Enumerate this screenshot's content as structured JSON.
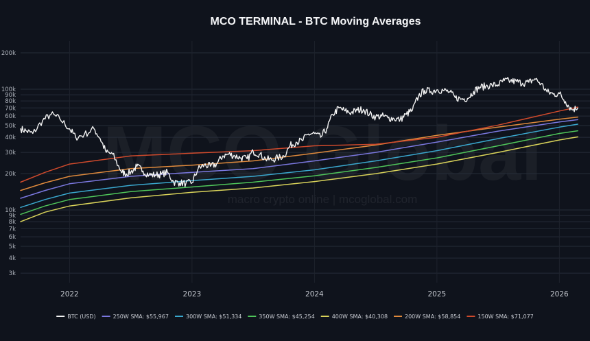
{
  "chart_data": {
    "type": "line",
    "title": "MCO TERMINAL - BTC Moving Averages",
    "xlabel": "",
    "ylabel": "",
    "yscale": "log",
    "ylim": [
      2500,
      250000
    ],
    "xlim": [
      2021.6,
      2026.25
    ],
    "grid": true,
    "legend_position": "bottom",
    "watermark": {
      "main": "MCO Global",
      "sub": "macro crypto online  |  mcoglobal.com"
    },
    "x_ticks": [
      {
        "label": "2022",
        "value": 2022
      },
      {
        "label": "2023",
        "value": 2023
      },
      {
        "label": "2024",
        "value": 2024
      },
      {
        "label": "2025",
        "value": 2025
      },
      {
        "label": "2026",
        "value": 2026
      }
    ],
    "y_ticks": [
      {
        "label": "3k",
        "value": 3000
      },
      {
        "label": "4k",
        "value": 4000
      },
      {
        "label": "5k",
        "value": 5000
      },
      {
        "label": "6k",
        "value": 6000
      },
      {
        "label": "7k",
        "value": 7000
      },
      {
        "label": "8k",
        "value": 8000
      },
      {
        "label": "9k",
        "value": 9000
      },
      {
        "label": "10k",
        "value": 10000
      },
      {
        "label": "20k",
        "value": 20000
      },
      {
        "label": "30k",
        "value": 30000
      },
      {
        "label": "40k",
        "value": 40000
      },
      {
        "label": "50k",
        "value": 50000
      },
      {
        "label": "60k",
        "value": 60000
      },
      {
        "label": "70k",
        "value": 70000
      },
      {
        "label": "80k",
        "value": 80000
      },
      {
        "label": "90k",
        "value": 90000
      },
      {
        "label": "100k",
        "value": 100000
      },
      {
        "label": "200k",
        "value": 200000
      }
    ],
    "series": [
      {
        "name": "BTC (USD)",
        "legend": "BTC (USD)",
        "color": "#f2f2f2",
        "width": 1.4,
        "jitter": 0.06,
        "x": [
          2021.6,
          2021.65,
          2021.7,
          2021.78,
          2021.85,
          2021.92,
          2022.0,
          2022.05,
          2022.12,
          2022.2,
          2022.25,
          2022.3,
          2022.35,
          2022.42,
          2022.45,
          2022.5,
          2022.55,
          2022.6,
          2022.65,
          2022.7,
          2022.75,
          2022.8,
          2022.85,
          2022.9,
          2022.95,
          2023.0,
          2023.05,
          2023.1,
          2023.15,
          2023.2,
          2023.25,
          2023.3,
          2023.35,
          2023.4,
          2023.45,
          2023.5,
          2023.55,
          2023.6,
          2023.65,
          2023.7,
          2023.75,
          2023.8,
          2023.85,
          2023.9,
          2023.95,
          2024.0,
          2024.05,
          2024.1,
          2024.15,
          2024.2,
          2024.25,
          2024.3,
          2024.35,
          2024.4,
          2024.45,
          2024.5,
          2024.55,
          2024.6,
          2024.65,
          2024.7,
          2024.75,
          2024.8,
          2024.85,
          2024.9,
          2024.95,
          2025.0,
          2025.05,
          2025.1,
          2025.15,
          2025.2,
          2025.25,
          2025.3,
          2025.35,
          2025.4,
          2025.45,
          2025.5,
          2025.55,
          2025.6,
          2025.65,
          2025.7,
          2025.75,
          2025.8,
          2025.85,
          2025.9,
          2025.95,
          2026.0,
          2026.05,
          2026.1,
          2026.15
        ],
        "values": [
          47000,
          45000,
          43000,
          55000,
          62000,
          57000,
          47000,
          40000,
          42000,
          47000,
          39000,
          30000,
          29000,
          21000,
          20000,
          20500,
          23000,
          21000,
          19500,
          19500,
          19800,
          20500,
          17000,
          16800,
          16600,
          16800,
          22000,
          23500,
          23000,
          24000,
          28000,
          29000,
          28000,
          27000,
          26500,
          30500,
          29000,
          26500,
          26000,
          27000,
          28000,
          34000,
          36500,
          37500,
          42500,
          43000,
          40000,
          47000,
          62000,
          70000,
          66000,
          64000,
          67000,
          68000,
          62000,
          59000,
          60000,
          58000,
          57000,
          56000,
          62000,
          67000,
          88000,
          98000,
          96000,
          99000,
          98000,
          95000,
          85000,
          83000,
          84000,
          96000,
          104000,
          106000,
          108000,
          109000,
          118000,
          117000,
          116000,
          112000,
          114000,
          122000,
          111000,
          95000,
          91000,
          92000,
          79000,
          68000,
          70000
        ]
      },
      {
        "name": "250W SMA",
        "legend": "250W SMA: $55,967",
        "color": "#7b78e0",
        "width": 1.5,
        "x": [
          2021.6,
          2021.8,
          2022.0,
          2022.5,
          2023.0,
          2023.5,
          2024.0,
          2024.5,
          2025.0,
          2025.5,
          2026.0,
          2026.15
        ],
        "values": [
          12500,
          14500,
          16500,
          19000,
          20500,
          22000,
          25500,
          30000,
          36500,
          45000,
          53500,
          55967
        ]
      },
      {
        "name": "300W SMA",
        "legend": "300W SMA: $51,334",
        "color": "#3aa8cf",
        "width": 1.5,
        "x": [
          2021.6,
          2021.8,
          2022.0,
          2022.5,
          2023.0,
          2023.5,
          2024.0,
          2024.5,
          2025.0,
          2025.5,
          2026.0,
          2026.15
        ],
        "values": [
          10500,
          12200,
          13800,
          16000,
          17500,
          19000,
          21500,
          25500,
          31000,
          39000,
          48500,
          51334
        ]
      },
      {
        "name": "350W SMA",
        "legend": "350W SMA: $45,254",
        "color": "#4fc65a",
        "width": 1.5,
        "x": [
          2021.6,
          2021.8,
          2022.0,
          2022.5,
          2023.0,
          2023.5,
          2024.0,
          2024.5,
          2025.0,
          2025.5,
          2026.0,
          2026.15
        ],
        "values": [
          9200,
          10800,
          12200,
          14200,
          15500,
          17000,
          19200,
          22500,
          27000,
          34000,
          43000,
          45254
        ]
      },
      {
        "name": "400W SMA",
        "legend": "400W SMA: $40,308",
        "color": "#d9d35a",
        "width": 1.5,
        "x": [
          2021.6,
          2021.8,
          2022.0,
          2022.5,
          2023.0,
          2023.5,
          2024.0,
          2024.5,
          2025.0,
          2025.5,
          2026.0,
          2026.15
        ],
        "values": [
          8000,
          9600,
          10800,
          12600,
          14000,
          15200,
          17200,
          20000,
          24000,
          30000,
          38000,
          40308
        ]
      },
      {
        "name": "200W SMA",
        "legend": "200W SMA: $58,854",
        "color": "#e08a3c",
        "width": 1.5,
        "x": [
          2021.6,
          2021.8,
          2022.0,
          2022.5,
          2023.0,
          2023.5,
          2024.0,
          2024.5,
          2025.0,
          2025.5,
          2026.0,
          2026.15
        ],
        "values": [
          14500,
          16800,
          19000,
          22000,
          23500,
          25500,
          29500,
          34500,
          41500,
          48500,
          56500,
          58854
        ]
      },
      {
        "name": "150W SMA",
        "legend": "150W SMA: $71,077",
        "color": "#d04a2c",
        "width": 1.5,
        "x": [
          2021.6,
          2021.8,
          2022.0,
          2022.5,
          2023.0,
          2023.5,
          2024.0,
          2024.5,
          2025.0,
          2025.5,
          2026.0,
          2026.15
        ],
        "values": [
          17000,
          20500,
          24000,
          28000,
          29500,
          31000,
          34000,
          35000,
          40000,
          50500,
          66000,
          71077
        ]
      }
    ]
  }
}
